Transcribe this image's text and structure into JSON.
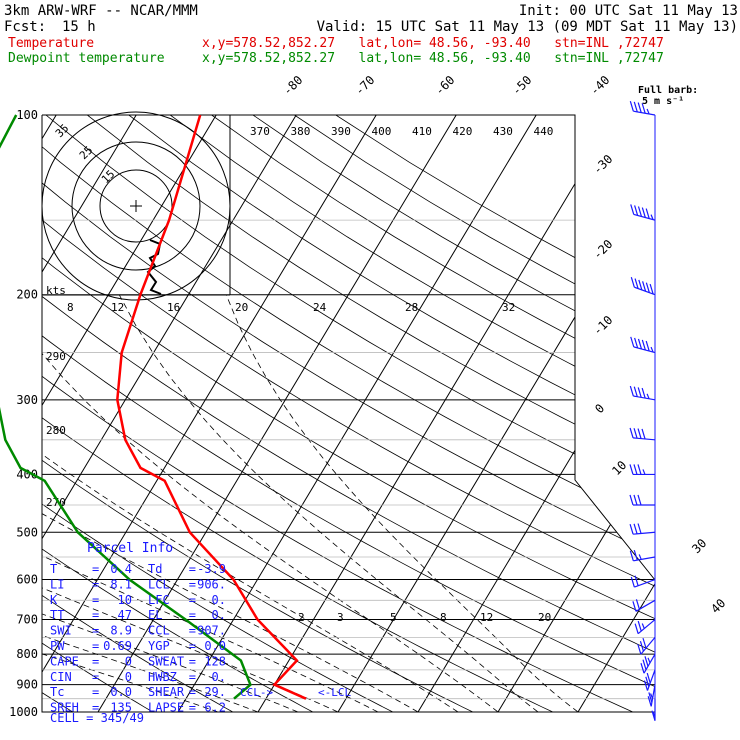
{
  "header": {
    "title": "3km ARW-WRF -- NCAR/MMM",
    "init": "Init: 00 UTC Sat 11 May 13",
    "fcst_label": "Fcst:",
    "fcst_value": "15 h",
    "valid": "Valid: 15 UTC Sat 11 May 13 (09 MDT Sat 11 May 13)",
    "temp_label": "Temperature",
    "temp_info": "x,y=578.52,852.27   lat,lon= 48.56, -93.40   stn=INL ,72747",
    "dew_label": "Dewpoint temperature",
    "dew_info": "x,y=578.52,852.27   lat,lon= 48.56, -93.40   stn=INL ,72747"
  },
  "barb_legend": {
    "line1": "Full barb:",
    "line2": "5 m s⁻¹"
  },
  "hodograph": {
    "unit_label": "kts",
    "ring_labels": [
      "15",
      "25",
      "35"
    ]
  },
  "chart_data": {
    "type": "line",
    "title": "",
    "colors": {
      "temperature": "#ff0000",
      "dewpoint": "#008a00",
      "parcel_info": "#1a1aff",
      "barbs": "#1a1aff"
    },
    "pressure_axis": {
      "levels": [
        100,
        200,
        300,
        400,
        500,
        600,
        700,
        800,
        900,
        1000
      ],
      "scale": "log",
      "ylim": [
        1000,
        100
      ]
    },
    "isotherm_labels": [
      "-80",
      "-70",
      "-60",
      "-50",
      "-40",
      "-30",
      "-20",
      "-10",
      "0",
      "10",
      "30",
      "40"
    ],
    "theta_e_labels": [
      "370",
      "380",
      "390",
      "400",
      "410",
      "420",
      "430",
      "440"
    ],
    "theta_labels": [
      "290",
      "280",
      "270"
    ],
    "mixing_ratio_top_labels": [
      "8",
      "12",
      "16",
      "20",
      "24",
      "28",
      "32"
    ],
    "mixing_ratio_bottom_labels": [
      "2",
      "3",
      "5",
      "8",
      "12",
      "20"
    ],
    "series": [
      {
        "name": "Temperature",
        "pressure": [
          100,
          150,
          200,
          250,
          300,
          350,
          390,
          410,
          500,
          600,
          700,
          820,
          900,
          950
        ],
        "temperature": [
          -52,
          -48,
          -46,
          -44,
          -41,
          -37,
          -33,
          -29,
          -22,
          -13,
          -7,
          1,
          0,
          5
        ]
      },
      {
        "name": "Dewpoint temperature",
        "pressure": [
          100,
          150,
          200,
          250,
          300,
          350,
          390,
          410,
          500,
          600,
          700,
          820,
          900,
          950
        ],
        "dewpoint": [
          -75,
          -74,
          -68,
          -62,
          -56,
          -52,
          -48,
          -44,
          -36,
          -26,
          -16,
          -6,
          -3,
          -4
        ]
      }
    ],
    "wind_barbs": {
      "pressure": [
        100,
        150,
        200,
        250,
        300,
        350,
        400,
        450,
        500,
        550,
        600,
        650,
        700,
        750,
        800,
        850,
        900,
        950
      ],
      "speed_kts": [
        45,
        55,
        60,
        55,
        45,
        40,
        35,
        30,
        30,
        25,
        20,
        20,
        25,
        30,
        35,
        30,
        25,
        15
      ],
      "direction_deg": [
        280,
        285,
        290,
        285,
        280,
        275,
        270,
        270,
        265,
        260,
        250,
        240,
        230,
        220,
        210,
        200,
        190,
        180
      ]
    },
    "markers": {
      "ccl": "CCL->",
      "lcl": "<-LCL"
    }
  },
  "parcel_info": {
    "title": "Parcel Info",
    "rows": [
      {
        "l1": "T",
        "v1": "0.4",
        "l2": "Td",
        "v2": "-3.9"
      },
      {
        "l1": "LI",
        "v1": "8.1",
        "l2": "LCL",
        "v2": "906."
      },
      {
        "l1": "K",
        "v1": "10",
        "l2": "LFC",
        "v2": "0."
      },
      {
        "l1": "TT",
        "v1": "47",
        "l2": "EL",
        "v2": "0."
      },
      {
        "l1": "SWI",
        "v1": "8.9",
        "l2": "CCL",
        "v2": "907."
      },
      {
        "l1": "PW",
        "v1": "0.69",
        "l2": "YGP",
        "v2": "0.0"
      },
      {
        "l1": "CAPE",
        "v1": "0",
        "l2": "SWEAT",
        "v2": "128"
      },
      {
        "l1": "CIN",
        "v1": "0",
        "l2": "HWBZ",
        "v2": "0."
      },
      {
        "l1": "Tc",
        "v1": "0.0",
        "l2": "SHEAR",
        "v2": "29."
      },
      {
        "l1": "SREH",
        "v1": "135",
        "l2": "LAPSE",
        "v2": "6.2"
      }
    ],
    "cell": "CELL = 345/49"
  }
}
